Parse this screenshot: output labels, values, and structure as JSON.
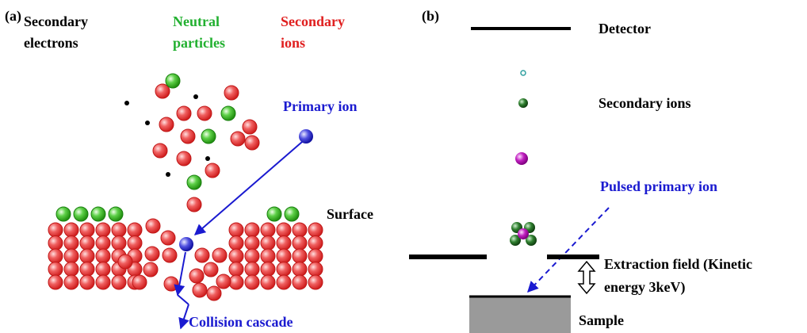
{
  "panel_a": {
    "label": "(a)",
    "secondary_electrons": [
      "Secondary",
      "electrons"
    ],
    "neutral_particles": [
      "Neutral",
      "particles"
    ],
    "secondary_ions": [
      "Secondary",
      "ions"
    ],
    "primary_ion": "Primary ion",
    "surface": "Surface",
    "collision_cascade": "Collision cascade"
  },
  "panel_b": {
    "label": "(b)",
    "detector": "Detector",
    "secondary_ions": "Secondary ions",
    "pulsed_primary_ion": "Pulsed primary ion",
    "extraction_field": [
      "Extraction field (Kinetic",
      "energy 3keV)"
    ],
    "sample": "Sample"
  }
}
